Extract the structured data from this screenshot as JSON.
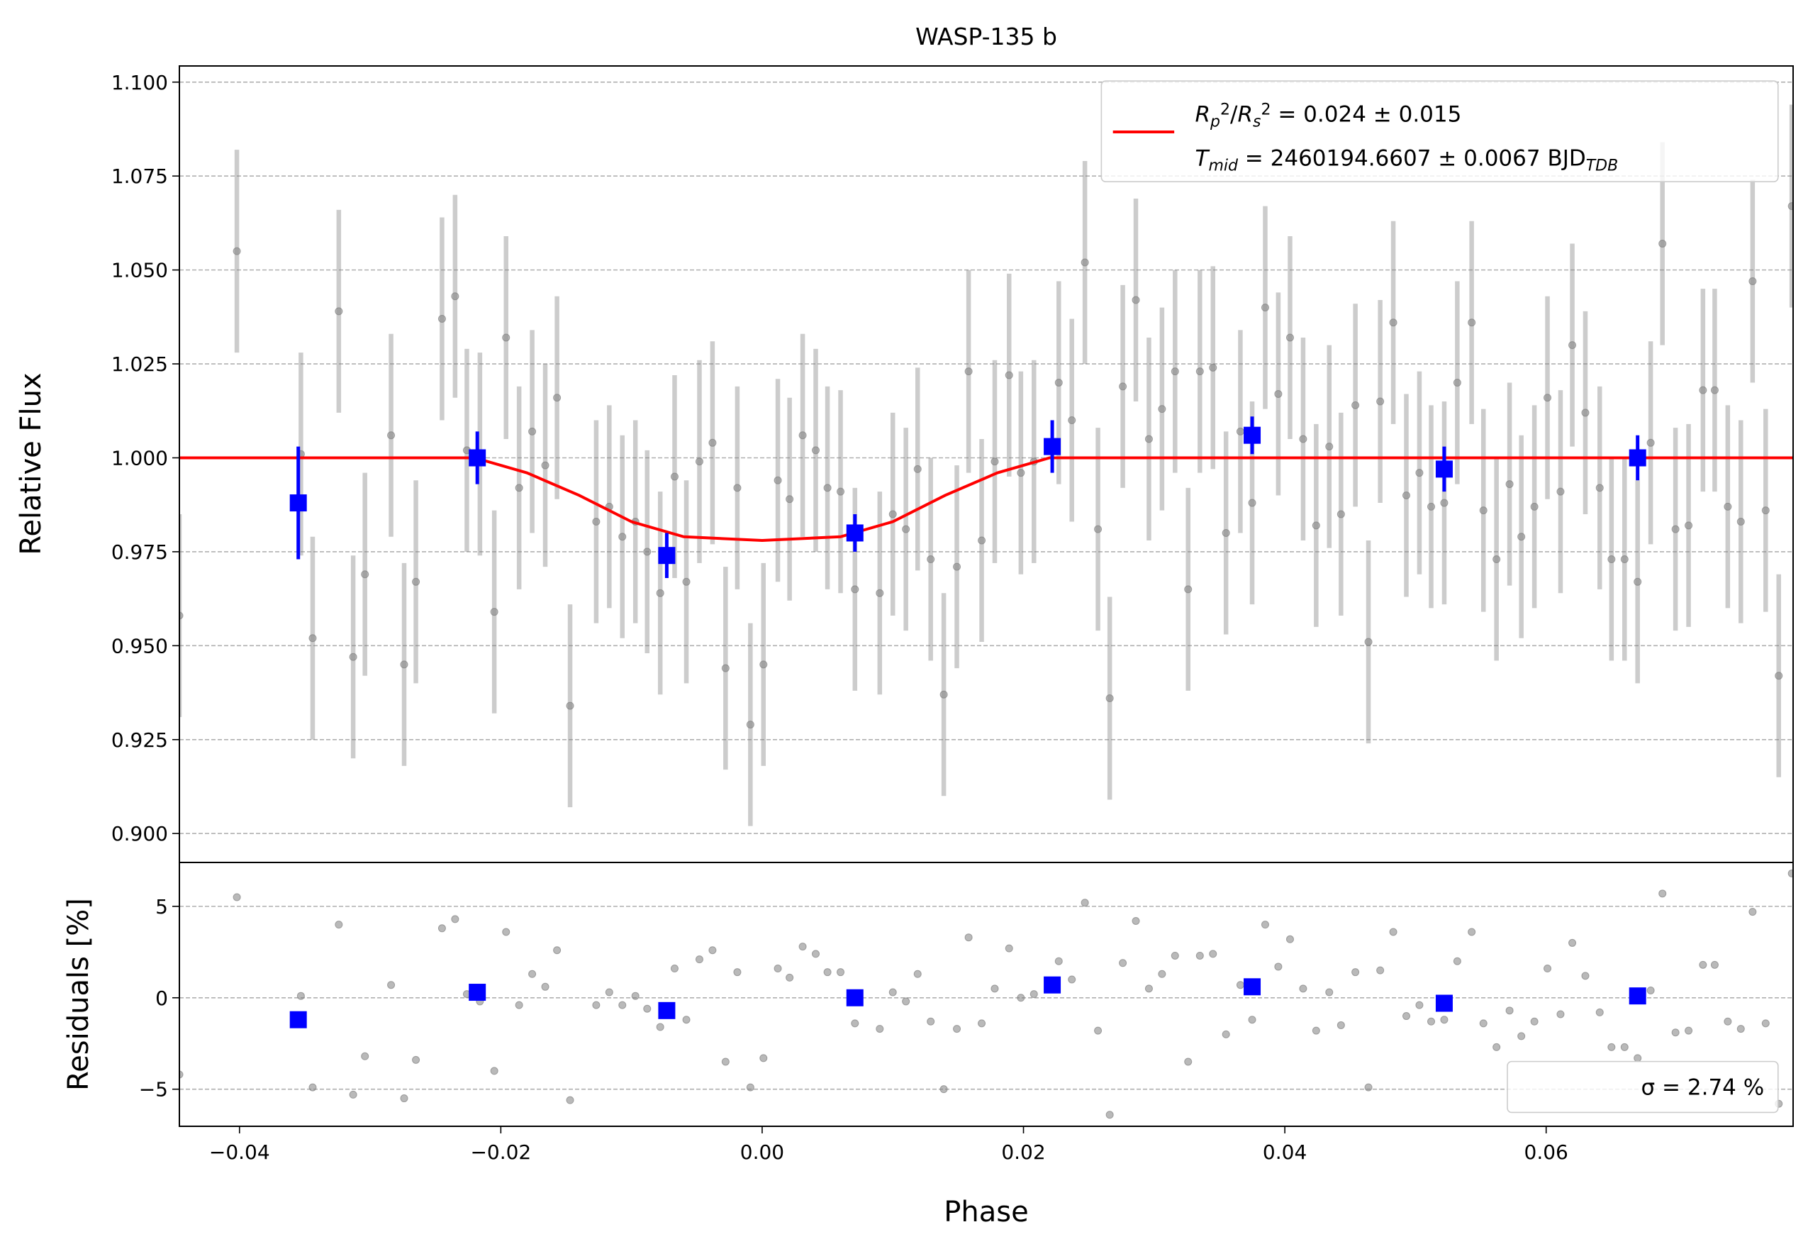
{
  "chart_data": [
    {
      "type": "errorbar",
      "title": "WASP-135 b",
      "y_label": "Relative Flux",
      "xlim": [
        -0.0446,
        0.0789
      ],
      "ylim": [
        0.8923,
        1.1043
      ],
      "yticks": [
        {
          "value": 0.9,
          "label": "0.900"
        },
        {
          "value": 0.925,
          "label": "0.925"
        },
        {
          "value": 0.95,
          "label": "0.950"
        },
        {
          "value": 0.975,
          "label": "0.975"
        },
        {
          "value": 1.0,
          "label": "1.000"
        },
        {
          "value": 1.025,
          "label": "1.025"
        },
        {
          "value": 1.05,
          "label": "1.050"
        },
        {
          "value": 1.075,
          "label": "1.075"
        },
        {
          "value": 1.1,
          "label": "1.100"
        }
      ],
      "grid": true,
      "legend": "upper right",
      "series": [
        {
          "type": "errorbar",
          "color": "#808080",
          "yerr": 0.027,
          "x": [
            -0.0446,
            -0.0402,
            -0.0353,
            -0.0344,
            -0.0324,
            -0.0313,
            -0.0304,
            -0.0284,
            -0.0274,
            -0.0265,
            -0.0245,
            -0.0235,
            -0.0226,
            -0.0216,
            -0.0205,
            -0.0196,
            -0.0186,
            -0.0176,
            -0.0166,
            -0.0157,
            -0.0147,
            -0.0127,
            -0.0117,
            -0.0107,
            -0.0097,
            -0.0088,
            -0.0078,
            -0.0067,
            -0.0058,
            -0.0048,
            -0.0038,
            -0.0028,
            -0.0019,
            -0.0009,
            0.0001,
            0.0012,
            0.0021,
            0.0031,
            0.0041,
            0.005,
            0.006,
            0.0071,
            0.009,
            0.01,
            0.011,
            0.0119,
            0.0129,
            0.0139,
            0.0149,
            0.0158,
            0.0168,
            0.0178,
            0.0189,
            0.0198,
            0.0208,
            0.0227,
            0.0237,
            0.0247,
            0.0257,
            0.0266,
            0.0276,
            0.0286,
            0.0296,
            0.0306,
            0.0316,
            0.0326,
            0.0335,
            0.0345,
            0.0355,
            0.0366,
            0.0375,
            0.0385,
            0.0395,
            0.0404,
            0.0414,
            0.0424,
            0.0434,
            0.0443,
            0.0454,
            0.0464,
            0.0473,
            0.0483,
            0.0493,
            0.0503,
            0.0512,
            0.0522,
            0.0532,
            0.0543,
            0.0552,
            0.0562,
            0.0572,
            0.0581,
            0.0591,
            0.0601,
            0.0611,
            0.062,
            0.063,
            0.0641,
            0.065,
            0.066,
            0.067,
            0.068,
            0.0689,
            0.0699,
            0.0709,
            0.072,
            0.0729,
            0.0739,
            0.0749,
            0.0758,
            0.0768,
            0.0778,
            0.0788
          ],
          "values": [
            0.958,
            1.055,
            1.001,
            0.952,
            1.039,
            0.947,
            0.969,
            1.006,
            0.945,
            0.967,
            1.037,
            1.043,
            1.002,
            1.001,
            0.959,
            1.032,
            0.992,
            1.007,
            0.998,
            1.016,
            0.934,
            0.983,
            0.987,
            0.979,
            0.983,
            0.975,
            0.964,
            0.995,
            0.967,
            0.999,
            1.004,
            0.944,
            0.992,
            0.929,
            0.945,
            0.994,
            0.989,
            1.006,
            1.002,
            0.992,
            0.991,
            0.965,
            0.964,
            0.985,
            0.981,
            0.997,
            0.973,
            0.937,
            0.971,
            1.023,
            0.978,
            0.999,
            1.022,
            0.996,
            0.999,
            1.02,
            1.01,
            1.052,
            0.981,
            0.936,
            1.019,
            1.042,
            1.005,
            1.013,
            1.023,
            0.965,
            1.023,
            1.024,
            0.98,
            1.007,
            0.988,
            1.04,
            1.017,
            1.032,
            1.005,
            0.982,
            1.003,
            0.985,
            1.014,
            0.951,
            1.015,
            1.036,
            0.99,
            0.996,
            0.987,
            0.988,
            1.02,
            1.036,
            0.986,
            0.973,
            0.993,
            0.979,
            0.987,
            1.016,
            0.991,
            1.03,
            1.012,
            0.992,
            0.973,
            0.973,
            0.967,
            1.004,
            1.057,
            0.981,
            0.982,
            1.018,
            1.018,
            0.987,
            0.983,
            1.047,
            0.986,
            0.942,
            1.067
          ]
        },
        {
          "type": "line",
          "color": "#ff0000",
          "name_parts": [
            {
              "text": "R",
              "italic": true
            },
            {
              "text": "p",
              "italic": true,
              "pos": "sub"
            },
            {
              "text": "2",
              "pos": "sup"
            },
            {
              "text": "/"
            },
            {
              "text": "R",
              "italic": true
            },
            {
              "text": "s",
              "italic": true,
              "pos": "sub"
            },
            {
              "text": "2",
              "pos": "sup"
            },
            {
              "text": " = 0.024 ± 0.015"
            }
          ],
          "name_parts_2": [
            {
              "text": "T",
              "italic": true
            },
            {
              "text": "mid",
              "italic": true,
              "pos": "sub"
            },
            {
              "text": " = 2460194.6607 ± 0.0067 BJD"
            },
            {
              "text": "TDB",
              "italic": true,
              "pos": "sub"
            }
          ],
          "x": [
            -0.0446,
            -0.022,
            -0.018,
            -0.014,
            -0.01,
            -0.006,
            0,
            0.006,
            0.01,
            0.014,
            0.018,
            0.022,
            0.0789
          ],
          "values": [
            1,
            1,
            0.996,
            0.99,
            0.983,
            0.979,
            0.978,
            0.979,
            0.983,
            0.99,
            0.996,
            1,
            1
          ]
        },
        {
          "type": "errorbar",
          "color": "#0000ff",
          "marker": "square",
          "x": [
            -0.0355,
            -0.0218,
            -0.0073,
            0.0071,
            0.0222,
            0.0375,
            0.0522,
            0.067
          ],
          "values": [
            0.988,
            1.0,
            0.974,
            0.98,
            1.003,
            1.006,
            0.997,
            1.0
          ],
          "yerr": [
            0.015,
            0.007,
            0.006,
            0.005,
            0.007,
            0.005,
            0.006,
            0.006
          ]
        }
      ]
    },
    {
      "type": "scatter",
      "x_label": "Phase",
      "y_label": "Residuals [%]",
      "xlim": [
        -0.0446,
        0.0789
      ],
      "ylim": [
        -7.03,
        7.4
      ],
      "xticks": [
        {
          "value": -0.04,
          "label": "−0.04"
        },
        {
          "value": -0.02,
          "label": "−0.02"
        },
        {
          "value": 0,
          "label": "0.00"
        },
        {
          "value": 0.02,
          "label": "0.02"
        },
        {
          "value": 0.04,
          "label": "0.04"
        },
        {
          "value": 0.06,
          "label": "0.06"
        }
      ],
      "yticks": [
        {
          "value": -5,
          "label": "−5"
        },
        0,
        5
      ],
      "grid": true,
      "annotation": "σ = 2.74 %",
      "annotation_loc": "lower right",
      "series": [
        {
          "color": "#808080",
          "x": [
            -0.0446,
            -0.0402,
            -0.0353,
            -0.0344,
            -0.0324,
            -0.0313,
            -0.0304,
            -0.0284,
            -0.0274,
            -0.0265,
            -0.0245,
            -0.0235,
            -0.0226,
            -0.0216,
            -0.0205,
            -0.0196,
            -0.0186,
            -0.0176,
            -0.0166,
            -0.0157,
            -0.0147,
            -0.0127,
            -0.0117,
            -0.0107,
            -0.0097,
            -0.0088,
            -0.0078,
            -0.0067,
            -0.0058,
            -0.0048,
            -0.0038,
            -0.0028,
            -0.0019,
            -0.0009,
            0.0001,
            0.0012,
            0.0021,
            0.0031,
            0.0041,
            0.005,
            0.006,
            0.0071,
            0.009,
            0.01,
            0.011,
            0.0119,
            0.0129,
            0.0139,
            0.0149,
            0.0158,
            0.0168,
            0.0178,
            0.0189,
            0.0198,
            0.0208,
            0.0227,
            0.0237,
            0.0247,
            0.0257,
            0.0266,
            0.0276,
            0.0286,
            0.0296,
            0.0306,
            0.0316,
            0.0326,
            0.0335,
            0.0345,
            0.0355,
            0.0366,
            0.0375,
            0.0385,
            0.0395,
            0.0404,
            0.0414,
            0.0424,
            0.0434,
            0.0443,
            0.0454,
            0.0464,
            0.0473,
            0.0483,
            0.0493,
            0.0503,
            0.0512,
            0.0522,
            0.0532,
            0.0543,
            0.0552,
            0.0562,
            0.0572,
            0.0581,
            0.0591,
            0.0601,
            0.0611,
            0.062,
            0.063,
            0.0641,
            0.065,
            0.066,
            0.067,
            0.068,
            0.0689,
            0.0699,
            0.0709,
            0.072,
            0.0729,
            0.0739,
            0.0749,
            0.0758,
            0.0768,
            0.0778,
            0.0788
          ],
          "values": [
            -4.2,
            5.5,
            0.1,
            -4.9,
            4.0,
            -5.3,
            -3.2,
            0.7,
            -5.5,
            -3.4,
            3.8,
            4.3,
            0.2,
            -0.2,
            -4.0,
            3.6,
            -0.4,
            1.3,
            0.6,
            2.6,
            -5.6,
            -0.4,
            0.3,
            -0.4,
            0.1,
            -0.6,
            -1.6,
            1.6,
            -1.2,
            2.1,
            2.6,
            -3.5,
            1.4,
            -4.9,
            -3.3,
            1.6,
            1.1,
            2.8,
            2.4,
            1.4,
            1.4,
            -1.4,
            -1.7,
            0.3,
            -0.2,
            1.3,
            -1.3,
            -5.0,
            -1.7,
            3.3,
            -1.4,
            0.5,
            2.7,
            0,
            0.2,
            2.0,
            1.0,
            5.2,
            -1.8,
            -6.4,
            1.9,
            4.2,
            0.5,
            1.3,
            2.3,
            -3.5,
            2.3,
            2.4,
            -2.0,
            0.7,
            -1.2,
            4.0,
            1.7,
            3.2,
            0.5,
            -1.8,
            0.3,
            -1.5,
            1.4,
            -4.9,
            1.5,
            3.6,
            -1.0,
            -0.4,
            -1.3,
            -1.2,
            2.0,
            3.6,
            -1.4,
            -2.7,
            -0.7,
            -2.1,
            -1.3,
            1.6,
            -0.9,
            3.0,
            1.2,
            -0.8,
            -2.7,
            -2.7,
            -3.3,
            0.4,
            5.7,
            -1.9,
            -1.8,
            1.8,
            1.8,
            -1.3,
            -1.7,
            4.7,
            -1.4,
            -5.8,
            6.8
          ]
        },
        {
          "color": "#0000ff",
          "marker": "square",
          "x": [
            -0.0355,
            -0.0218,
            -0.0073,
            0.0071,
            0.0222,
            0.0375,
            0.0522,
            0.067
          ],
          "values": [
            -1.2,
            0.3,
            -0.7,
            0,
            0.7,
            0.6,
            -0.3,
            0.1
          ]
        }
      ]
    }
  ]
}
